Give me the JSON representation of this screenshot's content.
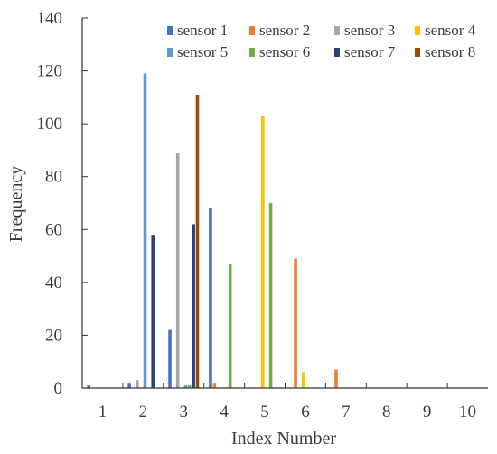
{
  "chart_data": {
    "type": "bar",
    "title": "",
    "xlabel": "Index Number",
    "ylabel": "Frequency",
    "categories": [
      "1",
      "2",
      "3",
      "4",
      "5",
      "6",
      "7",
      "8",
      "9",
      "10"
    ],
    "ylim": [
      0,
      140
    ],
    "yticks": [
      0,
      20,
      40,
      60,
      80,
      100,
      120,
      140
    ],
    "grid": false,
    "legend_position": "top-right",
    "series": [
      {
        "name": "sensor 1",
        "color": "#4472C4",
        "values": [
          1,
          2,
          22,
          68,
          0,
          0,
          0,
          0,
          0,
          0
        ]
      },
      {
        "name": "sensor 2",
        "color": "#ED7D31",
        "values": [
          0,
          0,
          0,
          2,
          0,
          49,
          7,
          0,
          0,
          0
        ]
      },
      {
        "name": "sensor 3",
        "color": "#A5A5A5",
        "values": [
          0,
          3,
          89,
          0,
          0,
          0,
          0,
          0,
          0,
          0
        ]
      },
      {
        "name": "sensor 4",
        "color": "#FFC000",
        "values": [
          0,
          0,
          0,
          0,
          103,
          6,
          0,
          0,
          0,
          0
        ]
      },
      {
        "name": "sensor 5",
        "color": "#5B9BD5",
        "values": [
          0,
          119,
          1,
          0,
          0,
          0,
          0,
          0,
          0,
          0
        ]
      },
      {
        "name": "sensor 6",
        "color": "#70AD47",
        "values": [
          0,
          0,
          1,
          47,
          70,
          0,
          0,
          0,
          0,
          0
        ]
      },
      {
        "name": "sensor 7",
        "color": "#264478",
        "values": [
          0,
          58,
          62,
          0,
          0,
          0,
          0,
          0,
          0,
          0
        ]
      },
      {
        "name": "sensor 8",
        "color": "#9E480E",
        "values": [
          0,
          0,
          111,
          0,
          0,
          0,
          0,
          0,
          0,
          0
        ]
      }
    ]
  }
}
